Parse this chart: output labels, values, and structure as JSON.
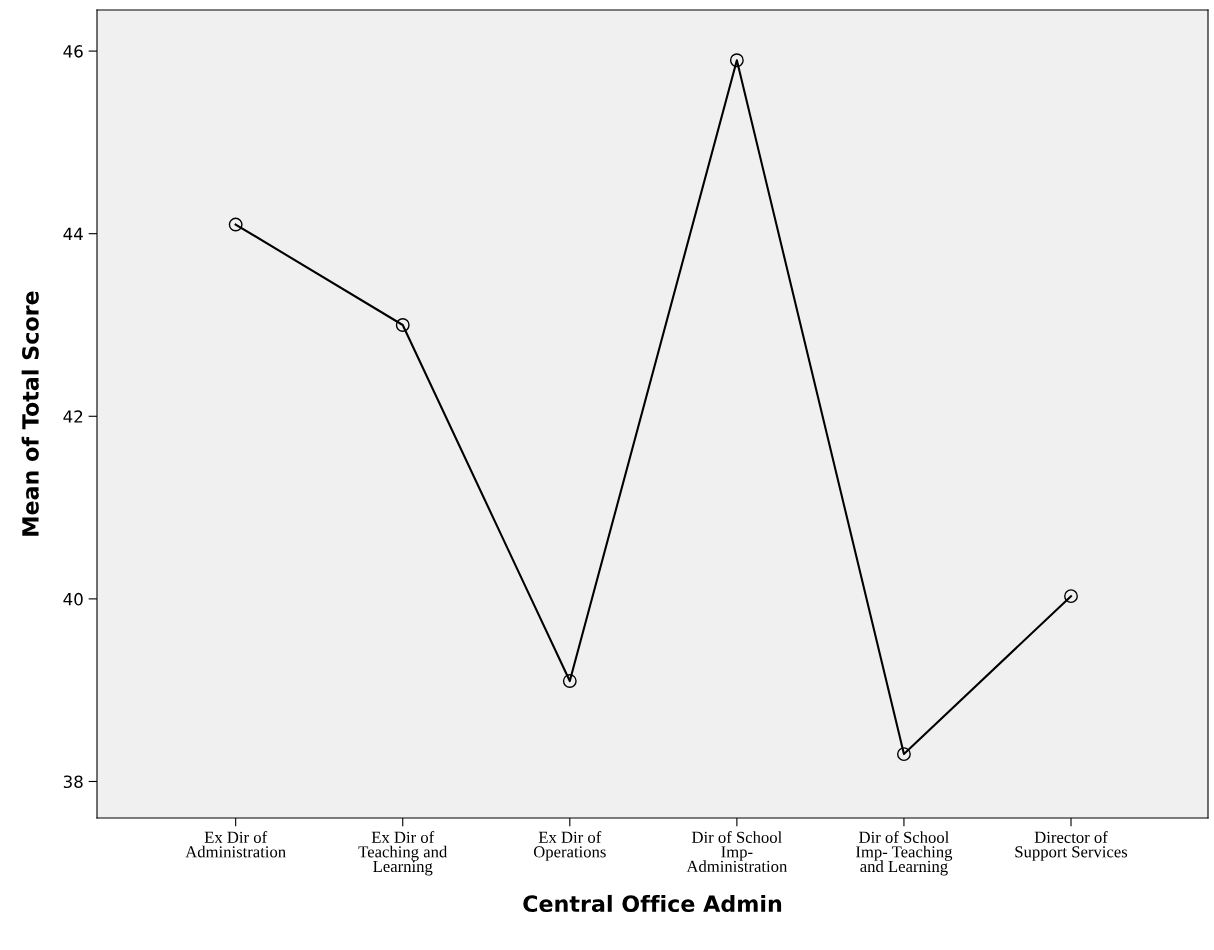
{
  "chart_data": {
    "type": "line",
    "xlabel": "Central Office Admin",
    "ylabel": "Mean of Total Score",
    "categories": [
      "Ex Dir of\nAdministration",
      "Ex Dir of\nTeaching and\nLearning",
      "Ex Dir of\nOperations",
      "Dir of School\nImp-\nAdministration",
      "Dir of School\nImp- Teaching\nand Learning",
      "Director of\nSupport Services"
    ],
    "series": [
      {
        "color": "#000000",
        "values": [
          44.1,
          43.0,
          39.1,
          45.9,
          38.3,
          40.03
        ]
      }
    ],
    "ylim": [
      37.6,
      46.45
    ],
    "yticks": [
      38,
      40,
      42,
      44,
      46
    ],
    "marker": "circle",
    "line_style": "solid",
    "grid": false,
    "legend": false
  }
}
